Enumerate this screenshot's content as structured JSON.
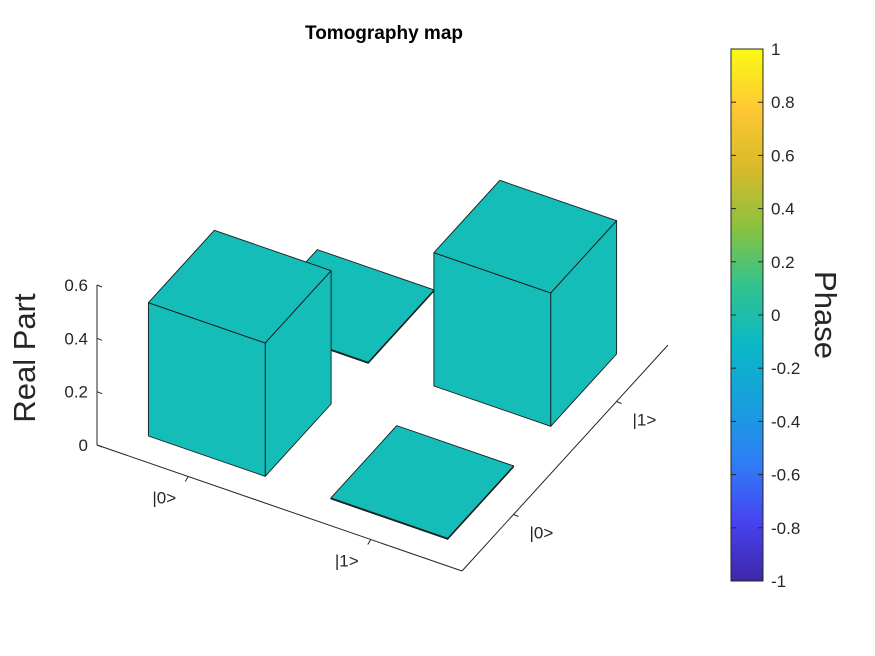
{
  "chart_data": {
    "type": "bar3d",
    "title": "Tomography map",
    "zlabel": "Real Part",
    "row_labels": [
      "|0>",
      "|1>"
    ],
    "col_labels": [
      "|0>",
      "|1>"
    ],
    "zlim": [
      0,
      0.6
    ],
    "zticks": [
      "0",
      "0.2",
      "0.4",
      "0.6"
    ],
    "values": [
      [
        0.5,
        0.0
      ],
      [
        0.0,
        0.5
      ]
    ],
    "phase": [
      [
        0,
        0
      ],
      [
        0,
        0
      ]
    ],
    "bar_color": "#14BDB8",
    "colorbar": {
      "label": "Phase",
      "range": [
        -1,
        1
      ],
      "ticks": [
        "1",
        "0.8",
        "0.6",
        "0.4",
        "0.2",
        "0",
        "-0.2",
        "-0.4",
        "-0.6",
        "-0.8",
        "-1"
      ],
      "colormap": [
        "#3E26A8",
        "#4743F1",
        "#2E7EF6",
        "#189FDD",
        "#0BB8C6",
        "#32C38E",
        "#8CC13E",
        "#D9BA29",
        "#FEC832",
        "#F9FB15"
      ]
    }
  }
}
